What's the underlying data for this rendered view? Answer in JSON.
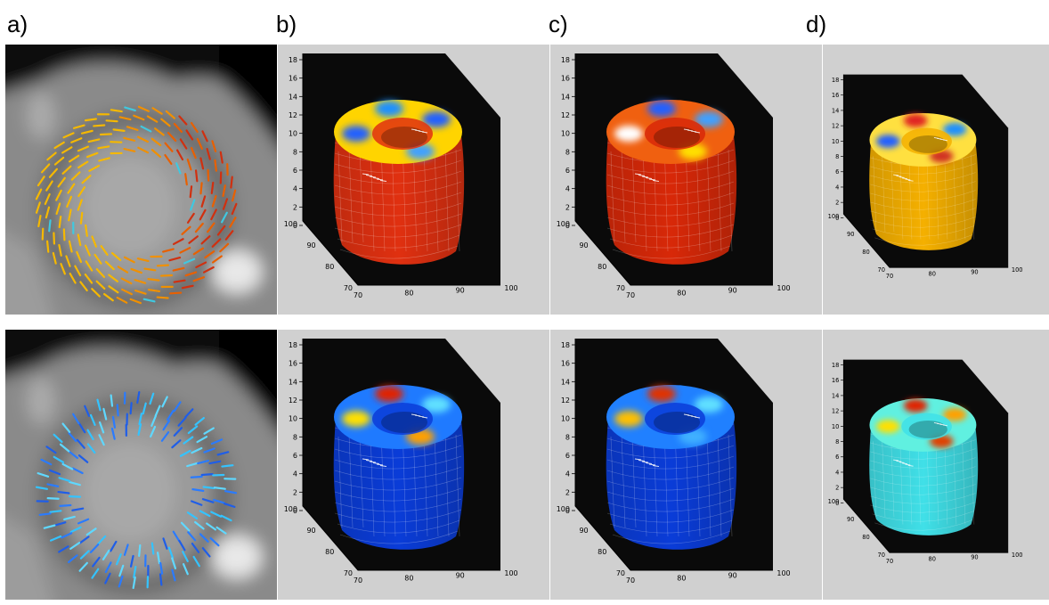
{
  "panel_labels": [
    "a)",
    "b)",
    "c)",
    "d)"
  ],
  "colors": {
    "plot_background": "#d0d0d0",
    "box_face": "#0a0a0a",
    "warm_scale": [
      "#ff2a00",
      "#ff8800",
      "#ffd000",
      "#ffff60",
      "#20d0ff",
      "#0040ff"
    ],
    "cool_scale": [
      "#0020c0",
      "#0050ff",
      "#00b0ff",
      "#30f0e0",
      "#ffe000",
      "#e01000"
    ]
  },
  "axes": {
    "z_ticks": [
      "0",
      "2",
      "4",
      "6",
      "8",
      "10",
      "12",
      "14",
      "16",
      "18"
    ],
    "y_ticks": [
      "100",
      "90",
      "80",
      "70"
    ],
    "x_ticks": [
      "70",
      "80",
      "90",
      "100"
    ]
  },
  "rows": [
    {
      "mri": {
        "vector_colors": [
          "#f5b800",
          "#f09000",
          "#e86000",
          "#d03010",
          "#40c8e0"
        ]
      },
      "surfaces": [
        {
          "panel": "b)",
          "body": "#e03010",
          "rim": "#ffd400",
          "blobs": [
            "#2060ff",
            "#1e90ff",
            "#2060ff",
            "#40a0ff"
          ]
        },
        {
          "panel": "c)",
          "body": "#d82808",
          "rim": "#f06010",
          "blobs": [
            "#ffffff",
            "#2060ff",
            "#40a0ff",
            "#ffe000"
          ]
        },
        {
          "panel": "d)",
          "body": "#f5b000",
          "rim": "#ffe040",
          "blobs": [
            "#2060ff",
            "#e02020",
            "#1e90ff",
            "#d03020"
          ]
        }
      ]
    },
    {
      "mri": {
        "vector_colors": [
          "#2a7bff",
          "#1f5ee8",
          "#34c3ff",
          "#5fd8ff"
        ]
      },
      "surfaces": [
        {
          "panel": "b)",
          "body": "#0a3cd8",
          "rim": "#1f7aff",
          "blobs": [
            "#ffe000",
            "#e02000",
            "#60e0ff",
            "#ffa000"
          ]
        },
        {
          "panel": "c)",
          "body": "#0a3cd8",
          "rim": "#2080ff",
          "blobs": [
            "#ffc000",
            "#e03000",
            "#60e0ff",
            "#40b0ff"
          ]
        },
        {
          "panel": "d)",
          "body": "#40e0e8",
          "rim": "#60f0e0",
          "blobs": [
            "#ffe000",
            "#e02000",
            "#ffa000",
            "#e04000"
          ]
        }
      ]
    }
  ]
}
